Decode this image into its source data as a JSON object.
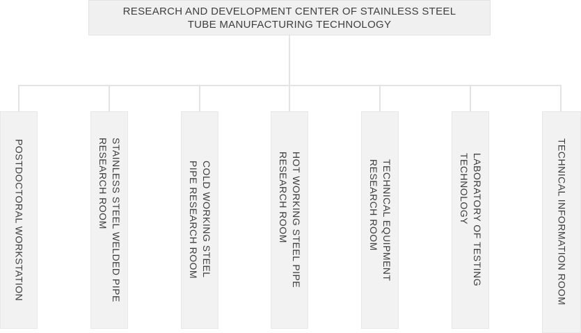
{
  "org": {
    "root": {
      "label": "RESEARCH AND DEVELOPMENT CENTER OF STAINLESS STEEL\nTUBE MANUFACTURING TECHNOLOGY"
    },
    "departments": [
      {
        "label": "POSTDOCTORAL WORKSTATION"
      },
      {
        "label": "STAINLESS STEEL WELDED PIPE\nRESEARCH ROOM"
      },
      {
        "label": "COLD WORKING STEEL\nPIPE RESEARCH ROOM"
      },
      {
        "label": "HOT WORKING STEEL PIPE\nRESEARCH ROOM"
      },
      {
        "label": "TECHNICAL EQUIPMENT\nRESEARCH ROOM"
      },
      {
        "label": "LABORATORY OF TESTING\nTECHNOLOGY"
      },
      {
        "label": "TECHNICAL INFORMATION ROOM"
      }
    ],
    "palette": {
      "node_fill": "#f2f2f2",
      "node_border": "#e8e8e8",
      "root_fill": "#f0f0f0",
      "root_border": "#e2e2e2",
      "connector": "#e3e3e3",
      "text": "#3e3e3e",
      "background": "#ffffff"
    }
  }
}
